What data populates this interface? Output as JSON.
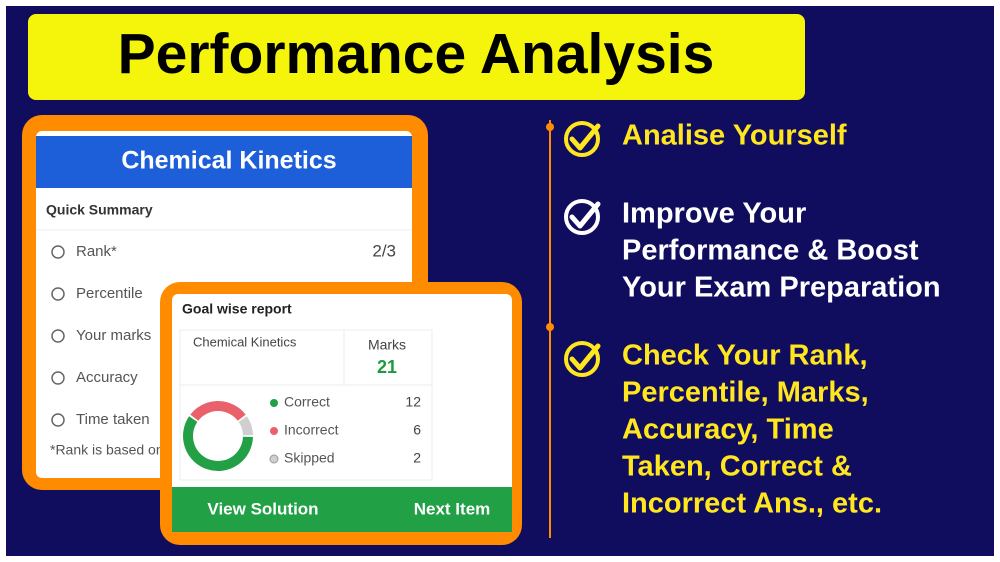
{
  "title": "Performance Analysis",
  "summary_card": {
    "heading": "Chemical Kinetics",
    "section": "Quick Summary",
    "rows": [
      {
        "label": "Rank*",
        "value": "2/3"
      },
      {
        "label": "Percentile"
      },
      {
        "label": "Your marks"
      },
      {
        "label": "Accuracy"
      },
      {
        "label": "Time taken"
      }
    ],
    "note": "*Rank is based on"
  },
  "report_card": {
    "heading": "Goal wise report",
    "subject": "Chemical Kinetics",
    "marks_label": "Marks",
    "marks": 21,
    "breakdown": [
      {
        "label": "Correct",
        "value": 12,
        "color": "#23a045"
      },
      {
        "label": "Incorrect",
        "value": 6,
        "color": "#e8616b"
      },
      {
        "label": "Skipped",
        "value": 2,
        "color": "#cfcfcf"
      }
    ],
    "buttons": [
      "View Solution",
      "Next Item"
    ]
  },
  "points": [
    {
      "lines": [
        "Analise Yourself"
      ],
      "color": "#ffe61e"
    },
    {
      "lines": [
        "Improve Your",
        "Performance & Boost",
        "Your Exam Preparation"
      ],
      "color": "#ffffff"
    },
    {
      "lines": [
        "Check Your Rank,",
        "Percentile, Marks,",
        "Accuracy, Time",
        "Taken, Correct &",
        "Incorrect Ans., etc."
      ],
      "color": "#ffe61e"
    }
  ]
}
